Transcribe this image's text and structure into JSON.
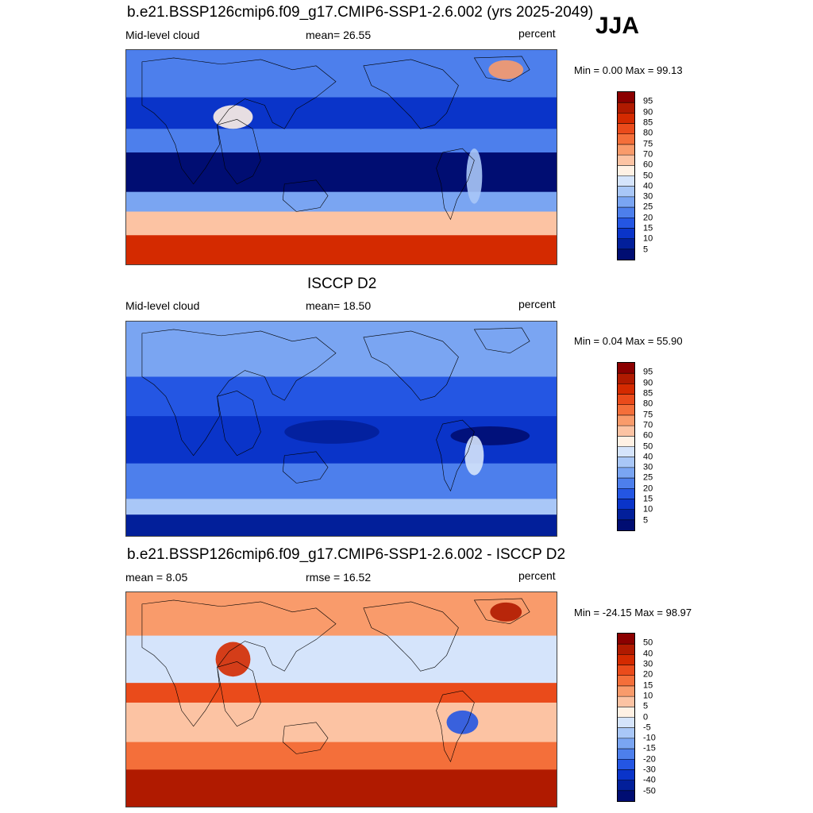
{
  "season": "JJA",
  "panels": [
    {
      "title": "b.e21.BSSP126cmip6.f09_g17.CMIP6-SSP1-2.6.002 (yrs 2025-2049)",
      "left_text": "Mid-level cloud",
      "center_text": "mean=  26.55",
      "units": "percent",
      "minmax": "Min =    0.00 Max =  99.13",
      "colorbar_labels": [
        "95",
        "90",
        "85",
        "80",
        "75",
        "70",
        "60",
        "50",
        "40",
        "30",
        "25",
        "20",
        "15",
        "10",
        "5"
      ],
      "colorbar_colors": [
        "#8b0000",
        "#b01a00",
        "#d42a00",
        "#ea4b1b",
        "#f46f3a",
        "#f99b6b",
        "#fcc3a3",
        "#fff1e4",
        "#d5e4fb",
        "#a9c7f7",
        "#7aa5f2",
        "#4d7fec",
        "#2456e3",
        "#0a34c9",
        "#021f9a",
        "#000d72"
      ],
      "map_style": "model"
    },
    {
      "title": "ISCCP D2",
      "left_text": "Mid-level cloud",
      "center_text": "mean=  18.50",
      "units": "percent",
      "minmax": "Min =    0.04 Max =  55.90",
      "colorbar_labels": [
        "95",
        "90",
        "85",
        "80",
        "75",
        "70",
        "60",
        "50",
        "40",
        "30",
        "25",
        "20",
        "15",
        "10",
        "5"
      ],
      "colorbar_colors": [
        "#8b0000",
        "#b01a00",
        "#d42a00",
        "#ea4b1b",
        "#f46f3a",
        "#f99b6b",
        "#fcc3a3",
        "#fff1e4",
        "#d5e4fb",
        "#a9c7f7",
        "#7aa5f2",
        "#4d7fec",
        "#2456e3",
        "#0a34c9",
        "#021f9a",
        "#000d72"
      ],
      "map_style": "obs"
    },
    {
      "title": "b.e21.BSSP126cmip6.f09_g17.CMIP6-SSP1-2.6.002 - ISCCP D2",
      "left_text": "mean =   8.05",
      "center_text": "rmse =  16.52",
      "units": "percent",
      "minmax": "Min = -24.15 Max =  98.97",
      "colorbar_labels": [
        "50",
        "40",
        "30",
        "20",
        "15",
        "10",
        "5",
        "0",
        "-5",
        "-10",
        "-15",
        "-20",
        "-30",
        "-40",
        "-50"
      ],
      "colorbar_colors": [
        "#8b0000",
        "#b01a00",
        "#d42a00",
        "#ea4b1b",
        "#f46f3a",
        "#f99b6b",
        "#fcc3a3",
        "#fff1e4",
        "#d5e4fb",
        "#a9c7f7",
        "#7aa5f2",
        "#4d7fec",
        "#2456e3",
        "#0a34c9",
        "#021f9a",
        "#000d72"
      ],
      "map_style": "diff"
    }
  ]
}
